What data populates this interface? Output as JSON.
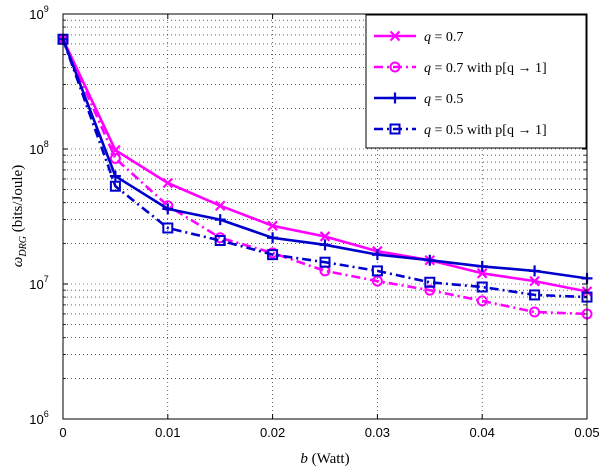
{
  "chart_data": {
    "type": "line",
    "title": "",
    "xlabel_var": "b",
    "xlabel_unit": "(Watt)",
    "ylabel_var": "ω",
    "ylabel_sub": "DRG",
    "ylabel_unit": "(bits/Joule)",
    "xlim": [
      0,
      0.05
    ],
    "ylim": [
      1000000,
      1000000000
    ],
    "yscale": "log",
    "grid": true,
    "legend_position": "top-right",
    "x_ticks": [
      {
        "value": 0,
        "label": "0"
      },
      {
        "value": 0.01,
        "label": "0.01"
      },
      {
        "value": 0.02,
        "label": "0.02"
      },
      {
        "value": 0.03,
        "label": "0.03"
      },
      {
        "value": 0.04,
        "label": "0.04"
      },
      {
        "value": 0.05,
        "label": "0.05"
      }
    ],
    "y_ticks": [
      {
        "value": 1000000,
        "base": "10",
        "exp": "6"
      },
      {
        "value": 10000000,
        "base": "10",
        "exp": "7"
      },
      {
        "value": 100000000,
        "base": "10",
        "exp": "8"
      },
      {
        "value": 1000000000,
        "base": "10",
        "exp": "9"
      }
    ],
    "x": [
      0,
      0.005,
      0.01,
      0.015,
      0.02,
      0.025,
      0.03,
      0.035,
      0.04,
      0.045,
      0.05
    ],
    "series": [
      {
        "name": "q = 0.7",
        "label_var": "q",
        "label_rest": " = 0.7",
        "color": "#ff00ff",
        "dash": "solid",
        "marker": "x",
        "values": [
          650000000,
          98000000,
          56000000,
          38000000,
          27000000,
          22500000,
          17500000,
          15000000,
          12000000,
          10500000,
          8800000
        ]
      },
      {
        "name": "q = 0.7 with p[q → 1]",
        "label_var": "q",
        "label_rest": " = 0.7 with p[q → 1]",
        "color": "#ff00ff",
        "dash": "dashdot",
        "marker": "circle",
        "values": [
          650000000,
          85000000,
          38000000,
          22000000,
          17000000,
          12500000,
          10500000,
          9000000,
          7500000,
          6200000,
          6000000
        ]
      },
      {
        "name": "q = 0.5",
        "label_var": "q",
        "label_rest": " = 0.5",
        "color": "#0000cc",
        "dash": "solid",
        "marker": "plus",
        "values": [
          650000000,
          63000000,
          36000000,
          30000000,
          22000000,
          19500000,
          16500000,
          15000000,
          13500000,
          12500000,
          11000000
        ]
      },
      {
        "name": "q = 0.5 with p[q → 1]",
        "label_var": "q",
        "label_rest": " = 0.5 with p[q → 1]",
        "color": "#0000cc",
        "dash": "dashdot",
        "marker": "square",
        "values": [
          650000000,
          53000000,
          26000000,
          21000000,
          16500000,
          14500000,
          12500000,
          10300000,
          9500000,
          8300000,
          8000000
        ]
      }
    ]
  }
}
